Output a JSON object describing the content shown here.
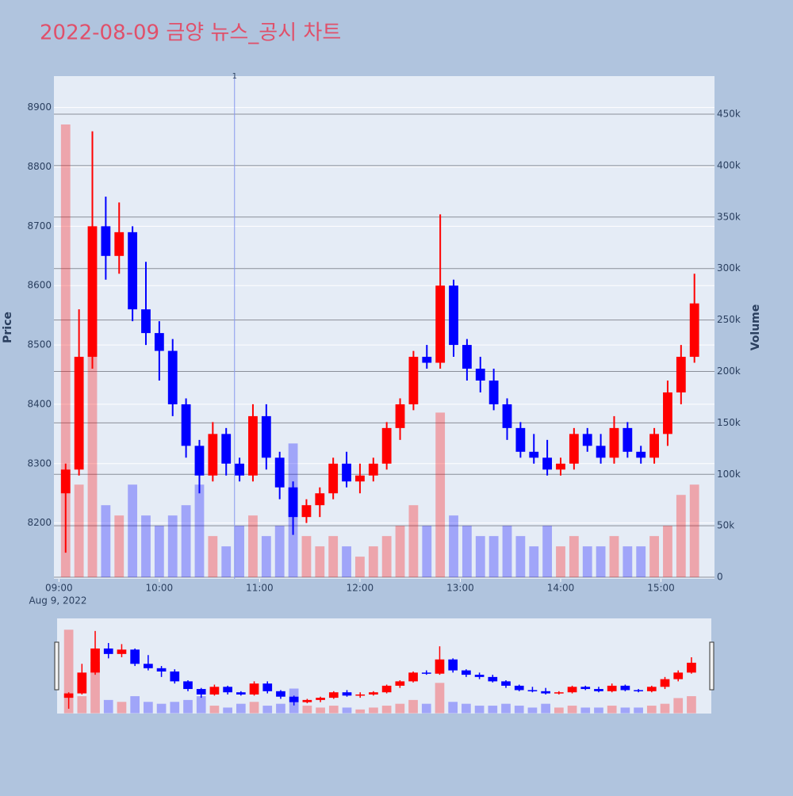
{
  "chart_data": {
    "type": "candlestick",
    "title": "2022-08-09 금양 뉴스_공시 차트",
    "ylabel": "Price",
    "y2label": "Volume",
    "x": [
      "09:00",
      "09:08",
      "09:16",
      "09:24",
      "09:32",
      "09:40",
      "09:48",
      "09:56",
      "10:04",
      "10:12",
      "10:20",
      "10:28",
      "10:36",
      "10:44",
      "10:52",
      "11:00",
      "11:08",
      "11:16",
      "11:24",
      "11:32",
      "11:40",
      "11:48",
      "11:56",
      "12:04",
      "12:12",
      "12:20",
      "12:28",
      "12:36",
      "12:44",
      "12:52",
      "13:00",
      "13:08",
      "13:16",
      "13:24",
      "13:32",
      "13:40",
      "13:48",
      "13:56",
      "14:04",
      "14:12",
      "14:20",
      "14:28",
      "14:36",
      "14:44",
      "14:52",
      "15:00",
      "15:08",
      "15:16"
    ],
    "open": [
      8250,
      8290,
      8480,
      8700,
      8650,
      8690,
      8560,
      8520,
      8490,
      8400,
      8330,
      8280,
      8350,
      8300,
      8280,
      8380,
      8310,
      8260,
      8210,
      8230,
      8250,
      8300,
      8270,
      8280,
      8300,
      8360,
      8400,
      8480,
      8470,
      8600,
      8500,
      8460,
      8440,
      8400,
      8360,
      8320,
      8310,
      8290,
      8300,
      8350,
      8330,
      8310,
      8360,
      8320,
      8310,
      8350,
      8420,
      8480
    ],
    "high": [
      8300,
      8560,
      8860,
      8750,
      8740,
      8700,
      8640,
      8540,
      8510,
      8410,
      8340,
      8370,
      8360,
      8310,
      8400,
      8400,
      8320,
      8270,
      8240,
      8260,
      8310,
      8320,
      8300,
      8310,
      8370,
      8410,
      8490,
      8500,
      8720,
      8610,
      8510,
      8480,
      8460,
      8410,
      8370,
      8350,
      8340,
      8310,
      8360,
      8360,
      8350,
      8380,
      8370,
      8330,
      8360,
      8440,
      8500,
      8620
    ],
    "low": [
      8150,
      8280,
      8460,
      8610,
      8620,
      8540,
      8500,
      8440,
      8380,
      8310,
      8250,
      8270,
      8280,
      8270,
      8270,
      8290,
      8240,
      8180,
      8200,
      8210,
      8240,
      8260,
      8250,
      8270,
      8290,
      8340,
      8390,
      8460,
      8460,
      8480,
      8440,
      8420,
      8390,
      8340,
      8310,
      8300,
      8280,
      8280,
      8290,
      8320,
      8300,
      8300,
      8310,
      8300,
      8300,
      8330,
      8400,
      8470
    ],
    "close": [
      8290,
      8480,
      8700,
      8650,
      8690,
      8560,
      8520,
      8490,
      8400,
      8330,
      8280,
      8350,
      8300,
      8280,
      8380,
      8310,
      8260,
      8210,
      8230,
      8250,
      8300,
      8270,
      8280,
      8300,
      8360,
      8400,
      8480,
      8470,
      8600,
      8500,
      8460,
      8440,
      8400,
      8360,
      8320,
      8310,
      8290,
      8300,
      8350,
      8330,
      8310,
      8360,
      8320,
      8310,
      8350,
      8420,
      8480,
      8570
    ],
    "volume": [
      440000,
      90000,
      270000,
      70000,
      60000,
      90000,
      60000,
      50000,
      60000,
      70000,
      90000,
      40000,
      30000,
      50000,
      60000,
      40000,
      50000,
      130000,
      40000,
      30000,
      40000,
      30000,
      20000,
      30000,
      40000,
      50000,
      70000,
      50000,
      160000,
      60000,
      50000,
      40000,
      40000,
      50000,
      40000,
      30000,
      50000,
      30000,
      40000,
      30000,
      30000,
      40000,
      30000,
      30000,
      40000,
      50000,
      80000,
      90000
    ],
    "increasing_color": "#ff0000",
    "decreasing_color": "#0000ff",
    "ylim": [
      8106,
      8953
    ],
    "yticks": [
      8200,
      8300,
      8400,
      8500,
      8600,
      8700,
      8800,
      8900
    ],
    "y2lim": [
      -1500,
      487000
    ],
    "y2ticks": [
      0,
      {
        "value": 50000,
        "label": "50k"
      },
      {
        "value": 100000,
        "label": "100k"
      },
      {
        "value": 150000,
        "label": "150k"
      },
      {
        "value": 200000,
        "label": "200k"
      },
      {
        "value": 250000,
        "label": "250k"
      },
      {
        "value": 300000,
        "label": "300k"
      },
      {
        "value": 350000,
        "label": "350k"
      },
      {
        "value": 400000,
        "label": "400k"
      },
      {
        "value": 450000,
        "label": "450k"
      }
    ],
    "xlim": [
      "08:57",
      "15:32"
    ],
    "xticks": [
      "09:00",
      "10:00",
      "11:00",
      "12:00",
      "13:00",
      "14:00",
      "15:00"
    ],
    "x_sub_label": "Aug 9, 2022",
    "annotations": [
      {
        "x": "10:45",
        "label": "1"
      }
    ]
  }
}
